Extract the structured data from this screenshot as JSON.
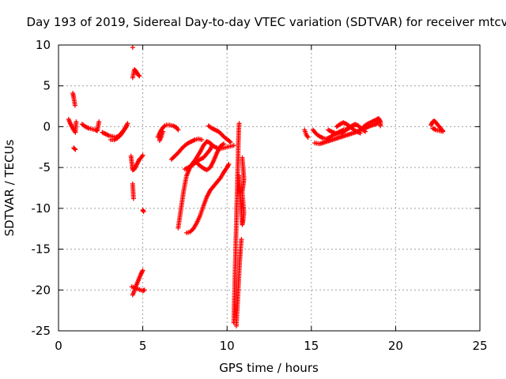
{
  "chart_data": {
    "type": "scatter",
    "title": "Day 193 of 2019, Sidereal Day-to-day VTEC variation (SDTVAR) for receiver mtcv",
    "xlabel": "GPS time / hours",
    "ylabel": "SDTVAR / TECUs",
    "xlim": [
      0,
      25
    ],
    "ylim": [
      -25,
      10
    ],
    "xticks": [
      0,
      5,
      10,
      15,
      20,
      25
    ],
    "xtick_labels": [
      "0",
      "5",
      "10",
      "15",
      "20",
      "25"
    ],
    "yticks": [
      10,
      5,
      0,
      -5,
      -10,
      -15,
      -20,
      -25
    ],
    "ytick_labels": [
      "10",
      "5",
      "0",
      "-5",
      "-10",
      "-15",
      "-20",
      "-25"
    ],
    "grid": true,
    "marker": "+",
    "color": "#ff0000",
    "segments": [
      {
        "points": [
          [
            0.6,
            0.9
          ],
          [
            0.7,
            0.4
          ],
          [
            0.8,
            0.0
          ],
          [
            0.9,
            -0.4
          ],
          [
            1.0,
            -0.7
          ],
          [
            1.05,
            0.6
          ]
        ]
      },
      {
        "points": [
          [
            0.85,
            4.1
          ],
          [
            0.9,
            3.6
          ],
          [
            0.95,
            3.0
          ],
          [
            0.98,
            2.6
          ]
        ]
      },
      {
        "points": [
          [
            0.9,
            -2.6
          ],
          [
            1.0,
            -2.8
          ]
        ]
      },
      {
        "points": [
          [
            1.4,
            0.3
          ],
          [
            1.6,
            0.0
          ],
          [
            1.8,
            -0.2
          ],
          [
            2.0,
            -0.3
          ],
          [
            2.2,
            -0.4
          ],
          [
            2.3,
            -0.5
          ],
          [
            2.4,
            0.6
          ]
        ]
      },
      {
        "points": [
          [
            2.6,
            -0.7
          ],
          [
            2.8,
            -0.9
          ],
          [
            3.0,
            -1.1
          ],
          [
            3.2,
            -1.2
          ],
          [
            3.4,
            -1.3
          ],
          [
            3.6,
            -1.1
          ],
          [
            3.8,
            -0.6
          ],
          [
            4.0,
            -0.1
          ],
          [
            4.1,
            0.4
          ]
        ]
      },
      {
        "points": [
          [
            3.1,
            -1.6
          ],
          [
            3.3,
            -1.6
          ],
          [
            3.5,
            -1.4
          ],
          [
            3.7,
            -1.0
          ],
          [
            3.9,
            -0.4
          ],
          [
            4.05,
            0.2
          ]
        ]
      },
      {
        "points": [
          [
            4.4,
            9.7
          ]
        ]
      },
      {
        "points": [
          [
            4.4,
            6.0
          ],
          [
            4.5,
            7.0
          ],
          [
            4.6,
            6.8
          ],
          [
            4.7,
            6.4
          ],
          [
            4.8,
            6.2
          ]
        ]
      },
      {
        "points": [
          [
            4.3,
            -3.6
          ],
          [
            4.4,
            -5.3
          ],
          [
            4.5,
            -5.2
          ],
          [
            4.6,
            -4.8
          ],
          [
            4.7,
            -4.4
          ],
          [
            4.8,
            -4.0
          ],
          [
            4.9,
            -3.8
          ],
          [
            5.0,
            -3.5
          ]
        ]
      },
      {
        "points": [
          [
            4.4,
            -7.0
          ],
          [
            4.45,
            -8.8
          ]
        ]
      },
      {
        "points": [
          [
            5.0,
            -10.2
          ],
          [
            5.05,
            -10.4
          ]
        ]
      },
      {
        "points": [
          [
            4.4,
            -20.6
          ],
          [
            4.5,
            -20.1
          ],
          [
            4.6,
            -19.5
          ],
          [
            4.7,
            -19.0
          ],
          [
            4.8,
            -18.5
          ],
          [
            4.9,
            -18.0
          ],
          [
            5.0,
            -17.6
          ]
        ]
      },
      {
        "points": [
          [
            4.35,
            -19.6
          ],
          [
            5.0,
            -20.1
          ],
          [
            5.1,
            -20.0
          ]
        ]
      },
      {
        "points": [
          [
            5.9,
            -1.3
          ],
          [
            6.0,
            -0.8
          ],
          [
            6.1,
            -0.4
          ],
          [
            6.2,
            -0.1
          ],
          [
            6.3,
            0.1
          ]
        ]
      },
      {
        "points": [
          [
            6.0,
            -1.7
          ],
          [
            6.1,
            -1.2
          ],
          [
            6.2,
            -0.6
          ]
        ]
      },
      {
        "points": [
          [
            6.4,
            0.2
          ],
          [
            6.6,
            0.2
          ],
          [
            6.8,
            0.1
          ],
          [
            7.0,
            -0.1
          ],
          [
            7.1,
            -0.4
          ]
        ]
      },
      {
        "points": [
          [
            7.1,
            -12.4
          ],
          [
            7.2,
            -11.0
          ],
          [
            7.3,
            -9.6
          ],
          [
            7.4,
            -8.2
          ],
          [
            7.5,
            -7.0
          ],
          [
            7.6,
            -6.0
          ],
          [
            7.8,
            -5.0
          ],
          [
            8.0,
            -4.6
          ],
          [
            8.2,
            -4.3
          ],
          [
            8.4,
            -4.0
          ],
          [
            8.6,
            -3.8
          ],
          [
            8.8,
            -3.3
          ],
          [
            9.0,
            -2.8
          ],
          [
            9.1,
            -2.3
          ]
        ]
      },
      {
        "points": [
          [
            6.7,
            -4.0
          ],
          [
            6.9,
            -3.6
          ],
          [
            7.1,
            -3.2
          ],
          [
            7.3,
            -2.7
          ],
          [
            7.5,
            -2.3
          ],
          [
            7.7,
            -2.0
          ],
          [
            7.9,
            -1.8
          ],
          [
            8.1,
            -1.6
          ],
          [
            8.3,
            -1.5
          ],
          [
            8.5,
            -1.6
          ]
        ]
      },
      {
        "points": [
          [
            7.5,
            -5.2
          ],
          [
            7.8,
            -4.9
          ],
          [
            8.1,
            -4.1
          ],
          [
            8.4,
            -3.1
          ],
          [
            8.6,
            -2.3
          ],
          [
            8.8,
            -1.8
          ],
          [
            9.0,
            -2.0
          ],
          [
            9.2,
            -2.4
          ],
          [
            9.4,
            -2.6
          ],
          [
            9.6,
            -2.7
          ],
          [
            9.8,
            -2.6
          ],
          [
            10.0,
            -2.5
          ],
          [
            10.2,
            -2.4
          ],
          [
            10.4,
            -2.3
          ]
        ]
      },
      {
        "points": [
          [
            7.6,
            -13.0
          ],
          [
            7.8,
            -12.9
          ],
          [
            8.0,
            -12.5
          ],
          [
            8.2,
            -11.8
          ],
          [
            8.4,
            -10.9
          ],
          [
            8.6,
            -9.7
          ],
          [
            8.8,
            -8.6
          ],
          [
            9.0,
            -7.8
          ],
          [
            9.2,
            -7.3
          ],
          [
            9.4,
            -6.8
          ],
          [
            9.6,
            -6.3
          ],
          [
            9.8,
            -5.6
          ],
          [
            10.0,
            -5.0
          ],
          [
            10.1,
            -4.6
          ]
        ]
      },
      {
        "points": [
          [
            8.2,
            -4.4
          ],
          [
            8.4,
            -4.8
          ],
          [
            8.6,
            -5.1
          ],
          [
            8.8,
            -5.3
          ],
          [
            9.0,
            -5.0
          ],
          [
            9.2,
            -4.2
          ],
          [
            9.4,
            -3.2
          ],
          [
            9.6,
            -2.4
          ],
          [
            9.8,
            -2.1
          ]
        ]
      },
      {
        "points": [
          [
            8.9,
            0.1
          ],
          [
            9.1,
            -0.2
          ],
          [
            9.3,
            -0.4
          ],
          [
            9.5,
            -0.6
          ],
          [
            9.7,
            -1.0
          ],
          [
            9.9,
            -1.4
          ],
          [
            10.1,
            -1.7
          ],
          [
            10.2,
            -1.9
          ]
        ]
      },
      {
        "points": [
          [
            10.4,
            -24.0
          ],
          [
            10.42,
            -22.0
          ],
          [
            10.45,
            -20.0
          ],
          [
            10.47,
            -18.0
          ],
          [
            10.5,
            -16.0
          ],
          [
            10.52,
            -14.0
          ],
          [
            10.55,
            -12.0
          ],
          [
            10.57,
            -10.0
          ],
          [
            10.6,
            -8.0
          ],
          [
            10.62,
            -6.0
          ],
          [
            10.65,
            -4.0
          ],
          [
            10.67,
            -2.0
          ],
          [
            10.7,
            0.0
          ],
          [
            10.72,
            0.4
          ]
        ]
      },
      {
        "points": [
          [
            10.55,
            -24.4
          ],
          [
            10.6,
            -22.5
          ],
          [
            10.65,
            -20.5
          ],
          [
            10.7,
            -18.5
          ],
          [
            10.75,
            -16.5
          ],
          [
            10.8,
            -15.0
          ],
          [
            10.85,
            -13.8
          ]
        ]
      },
      {
        "points": [
          [
            10.7,
            -6.0
          ],
          [
            10.75,
            -7.5
          ],
          [
            10.8,
            -9.0
          ],
          [
            10.85,
            -10.5
          ],
          [
            10.9,
            -12.0
          ],
          [
            10.95,
            -11.5
          ],
          [
            11.0,
            -10.5
          ],
          [
            10.9,
            -8.0
          ],
          [
            11.0,
            -6.5
          ],
          [
            10.95,
            -5.0
          ],
          [
            10.9,
            -3.8
          ]
        ]
      },
      {
        "points": [
          [
            14.6,
            -0.4
          ],
          [
            14.7,
            -1.0
          ],
          [
            14.8,
            -1.3
          ]
        ]
      },
      {
        "points": [
          [
            15.1,
            -0.4
          ],
          [
            15.3,
            -0.9
          ],
          [
            15.5,
            -1.2
          ],
          [
            15.7,
            -1.4
          ],
          [
            15.9,
            -1.5
          ],
          [
            16.1,
            -1.3
          ],
          [
            16.3,
            -1.0
          ],
          [
            16.5,
            -0.8
          ],
          [
            16.7,
            -0.6
          ],
          [
            16.9,
            -0.4
          ],
          [
            17.1,
            -0.3
          ],
          [
            17.3,
            -0.1
          ],
          [
            17.5,
            0.0
          ]
        ]
      },
      {
        "points": [
          [
            15.2,
            -2.0
          ],
          [
            15.5,
            -2.1
          ],
          [
            15.8,
            -1.9
          ],
          [
            16.1,
            -1.7
          ],
          [
            16.4,
            -1.5
          ],
          [
            16.7,
            -1.3
          ],
          [
            17.0,
            -1.1
          ],
          [
            17.3,
            -0.9
          ],
          [
            17.6,
            -0.7
          ],
          [
            17.9,
            -0.4
          ],
          [
            18.2,
            -0.2
          ],
          [
            18.5,
            0.1
          ],
          [
            18.8,
            0.3
          ],
          [
            19.0,
            0.5
          ]
        ]
      },
      {
        "points": [
          [
            16.0,
            -0.4
          ],
          [
            16.2,
            -0.6
          ],
          [
            16.4,
            -0.8
          ],
          [
            16.6,
            -0.9
          ],
          [
            16.8,
            -0.8
          ],
          [
            17.0,
            -0.5
          ],
          [
            17.2,
            -0.2
          ],
          [
            17.4,
            0.1
          ],
          [
            17.6,
            0.3
          ],
          [
            17.8,
            0.1
          ],
          [
            18.0,
            -0.3
          ],
          [
            18.2,
            -0.6
          ]
        ]
      },
      {
        "points": [
          [
            16.5,
            0.0
          ],
          [
            16.7,
            0.3
          ],
          [
            16.9,
            0.5
          ],
          [
            17.1,
            0.3
          ],
          [
            17.3,
            0.0
          ],
          [
            17.6,
            -0.5
          ],
          [
            17.9,
            -0.8
          ]
        ]
      },
      {
        "points": [
          [
            18.1,
            0.0
          ],
          [
            18.3,
            0.3
          ],
          [
            18.5,
            0.5
          ],
          [
            18.7,
            0.7
          ],
          [
            18.9,
            0.9
          ],
          [
            19.0,
            1.0
          ],
          [
            19.1,
            0.6
          ],
          [
            19.1,
            0.1
          ]
        ]
      },
      {
        "points": [
          [
            22.1,
            0.2
          ],
          [
            22.2,
            0.6
          ],
          [
            22.3,
            0.7
          ],
          [
            22.4,
            0.5
          ],
          [
            22.5,
            0.2
          ],
          [
            22.6,
            0.0
          ],
          [
            22.7,
            -0.3
          ],
          [
            22.8,
            -0.5
          ]
        ]
      },
      {
        "points": [
          [
            22.2,
            -0.2
          ],
          [
            22.4,
            -0.4
          ],
          [
            22.6,
            -0.5
          ],
          [
            22.8,
            -0.6
          ]
        ]
      }
    ]
  }
}
